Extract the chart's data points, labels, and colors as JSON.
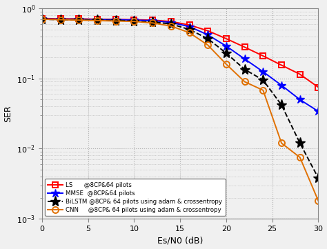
{
  "x": [
    0,
    2,
    4,
    6,
    8,
    10,
    12,
    14,
    16,
    18,
    20,
    22,
    24,
    26,
    28,
    30
  ],
  "LS": [
    0.72,
    0.71,
    0.71,
    0.7,
    0.7,
    0.69,
    0.68,
    0.65,
    0.58,
    0.48,
    0.37,
    0.28,
    0.21,
    0.155,
    0.115,
    0.075
  ],
  "MMSE": [
    0.71,
    0.7,
    0.7,
    0.69,
    0.69,
    0.68,
    0.67,
    0.63,
    0.55,
    0.42,
    0.29,
    0.19,
    0.125,
    0.08,
    0.05,
    0.034
  ],
  "BiLSTM": [
    0.7,
    0.69,
    0.69,
    0.68,
    0.67,
    0.66,
    0.64,
    0.6,
    0.5,
    0.37,
    0.23,
    0.135,
    0.095,
    0.042,
    0.012,
    0.0038
  ],
  "CNN": [
    0.7,
    0.69,
    0.68,
    0.67,
    0.66,
    0.65,
    0.62,
    0.56,
    0.45,
    0.3,
    0.16,
    0.09,
    0.068,
    0.012,
    0.0075,
    0.0018
  ],
  "LS_color": "#ff0000",
  "MMSE_color": "#0000ff",
  "BiLSTM_color": "#000000",
  "CNN_color": "#e07000",
  "xlabel": "Es/N0 (dB)",
  "ylabel": "SER",
  "xlim": [
    0,
    30
  ],
  "ylim": [
    0.001,
    1.0
  ],
  "xticks": [
    0,
    5,
    10,
    15,
    20,
    25,
    30
  ],
  "legend_labels": [
    "LS      @8CP&64 pilots",
    "MMSE  @8CP&64 pilots",
    "BiLSTM @8CP& 64 pilots using adam & crossentropy",
    "CNN     @8CP& 64 pilots using adam & crossentropy"
  ],
  "bg_color": "#f0f0f0"
}
